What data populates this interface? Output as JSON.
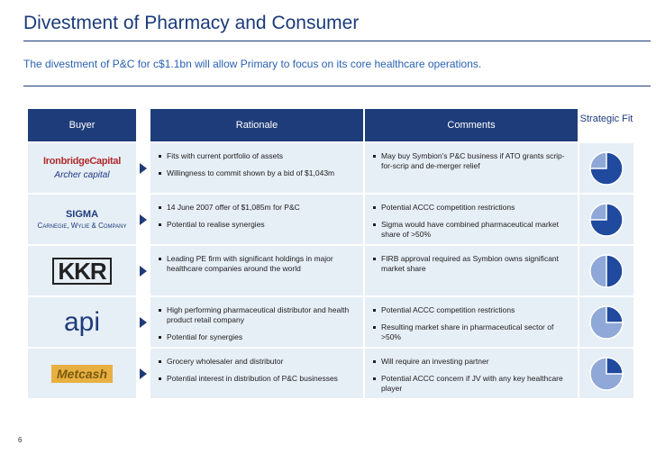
{
  "title": "Divestment of Pharmacy and Consumer",
  "subtitle": "The divestment of P&C for c$1.1bn will allow Primary to focus on its core healthcare operations.",
  "headers": {
    "buyer": "Buyer",
    "rationale": "Rationale",
    "comments": "Comments",
    "fit": "Strategic Fit"
  },
  "rows": [
    {
      "logos": [
        "IronbridgeCapital",
        "Archer capital"
      ],
      "rationale": [
        "Fits with current portfolio of assets",
        "Willingness to commit shown by a bid of $1,043m"
      ],
      "comments": [
        "May buy Symbion’s P&C business if ATO grants scrip-for-scrip and de-merger relief"
      ],
      "fit": 0.75
    },
    {
      "logos": [
        "SIGMA",
        "Carnegie, Wylie & Company"
      ],
      "rationale": [
        "14 June 2007 offer of $1,085m for P&C",
        "Potential to realise synergies"
      ],
      "comments": [
        "Potential ACCC competition restrictions",
        "Sigma would have combined pharmaceutical market share of >50%"
      ],
      "fit": 0.75
    },
    {
      "logos": [
        "KKR"
      ],
      "rationale": [
        "Leading PE firm with significant holdings in major healthcare companies around the world"
      ],
      "comments": [
        "FIRB approval required as Symbion owns significant market share"
      ],
      "fit": 0.5
    },
    {
      "logos": [
        "api"
      ],
      "rationale": [
        "High performing pharmaceutical distributor and health product retail company",
        "Potential for synergies"
      ],
      "comments": [
        "Potential ACCC competition restrictions",
        "Resulting market share in pharmaceutical sector of >50%"
      ],
      "fit": 0.25
    },
    {
      "logos": [
        "Metcash"
      ],
      "rationale": [
        "Grocery wholesaler and distributor",
        "Potential interest in distribution of P&C businesses"
      ],
      "comments": [
        "Will require an investing partner",
        "Potential ACCC concern if JV with any key healthcare player"
      ],
      "fit": 0.25
    }
  ],
  "page_number": "6",
  "colors": {
    "navy": "#1f3c7a",
    "cell": "#e6eef6",
    "pie_dark": "#1f4a9e",
    "pie_light": "#8fa8d8"
  }
}
